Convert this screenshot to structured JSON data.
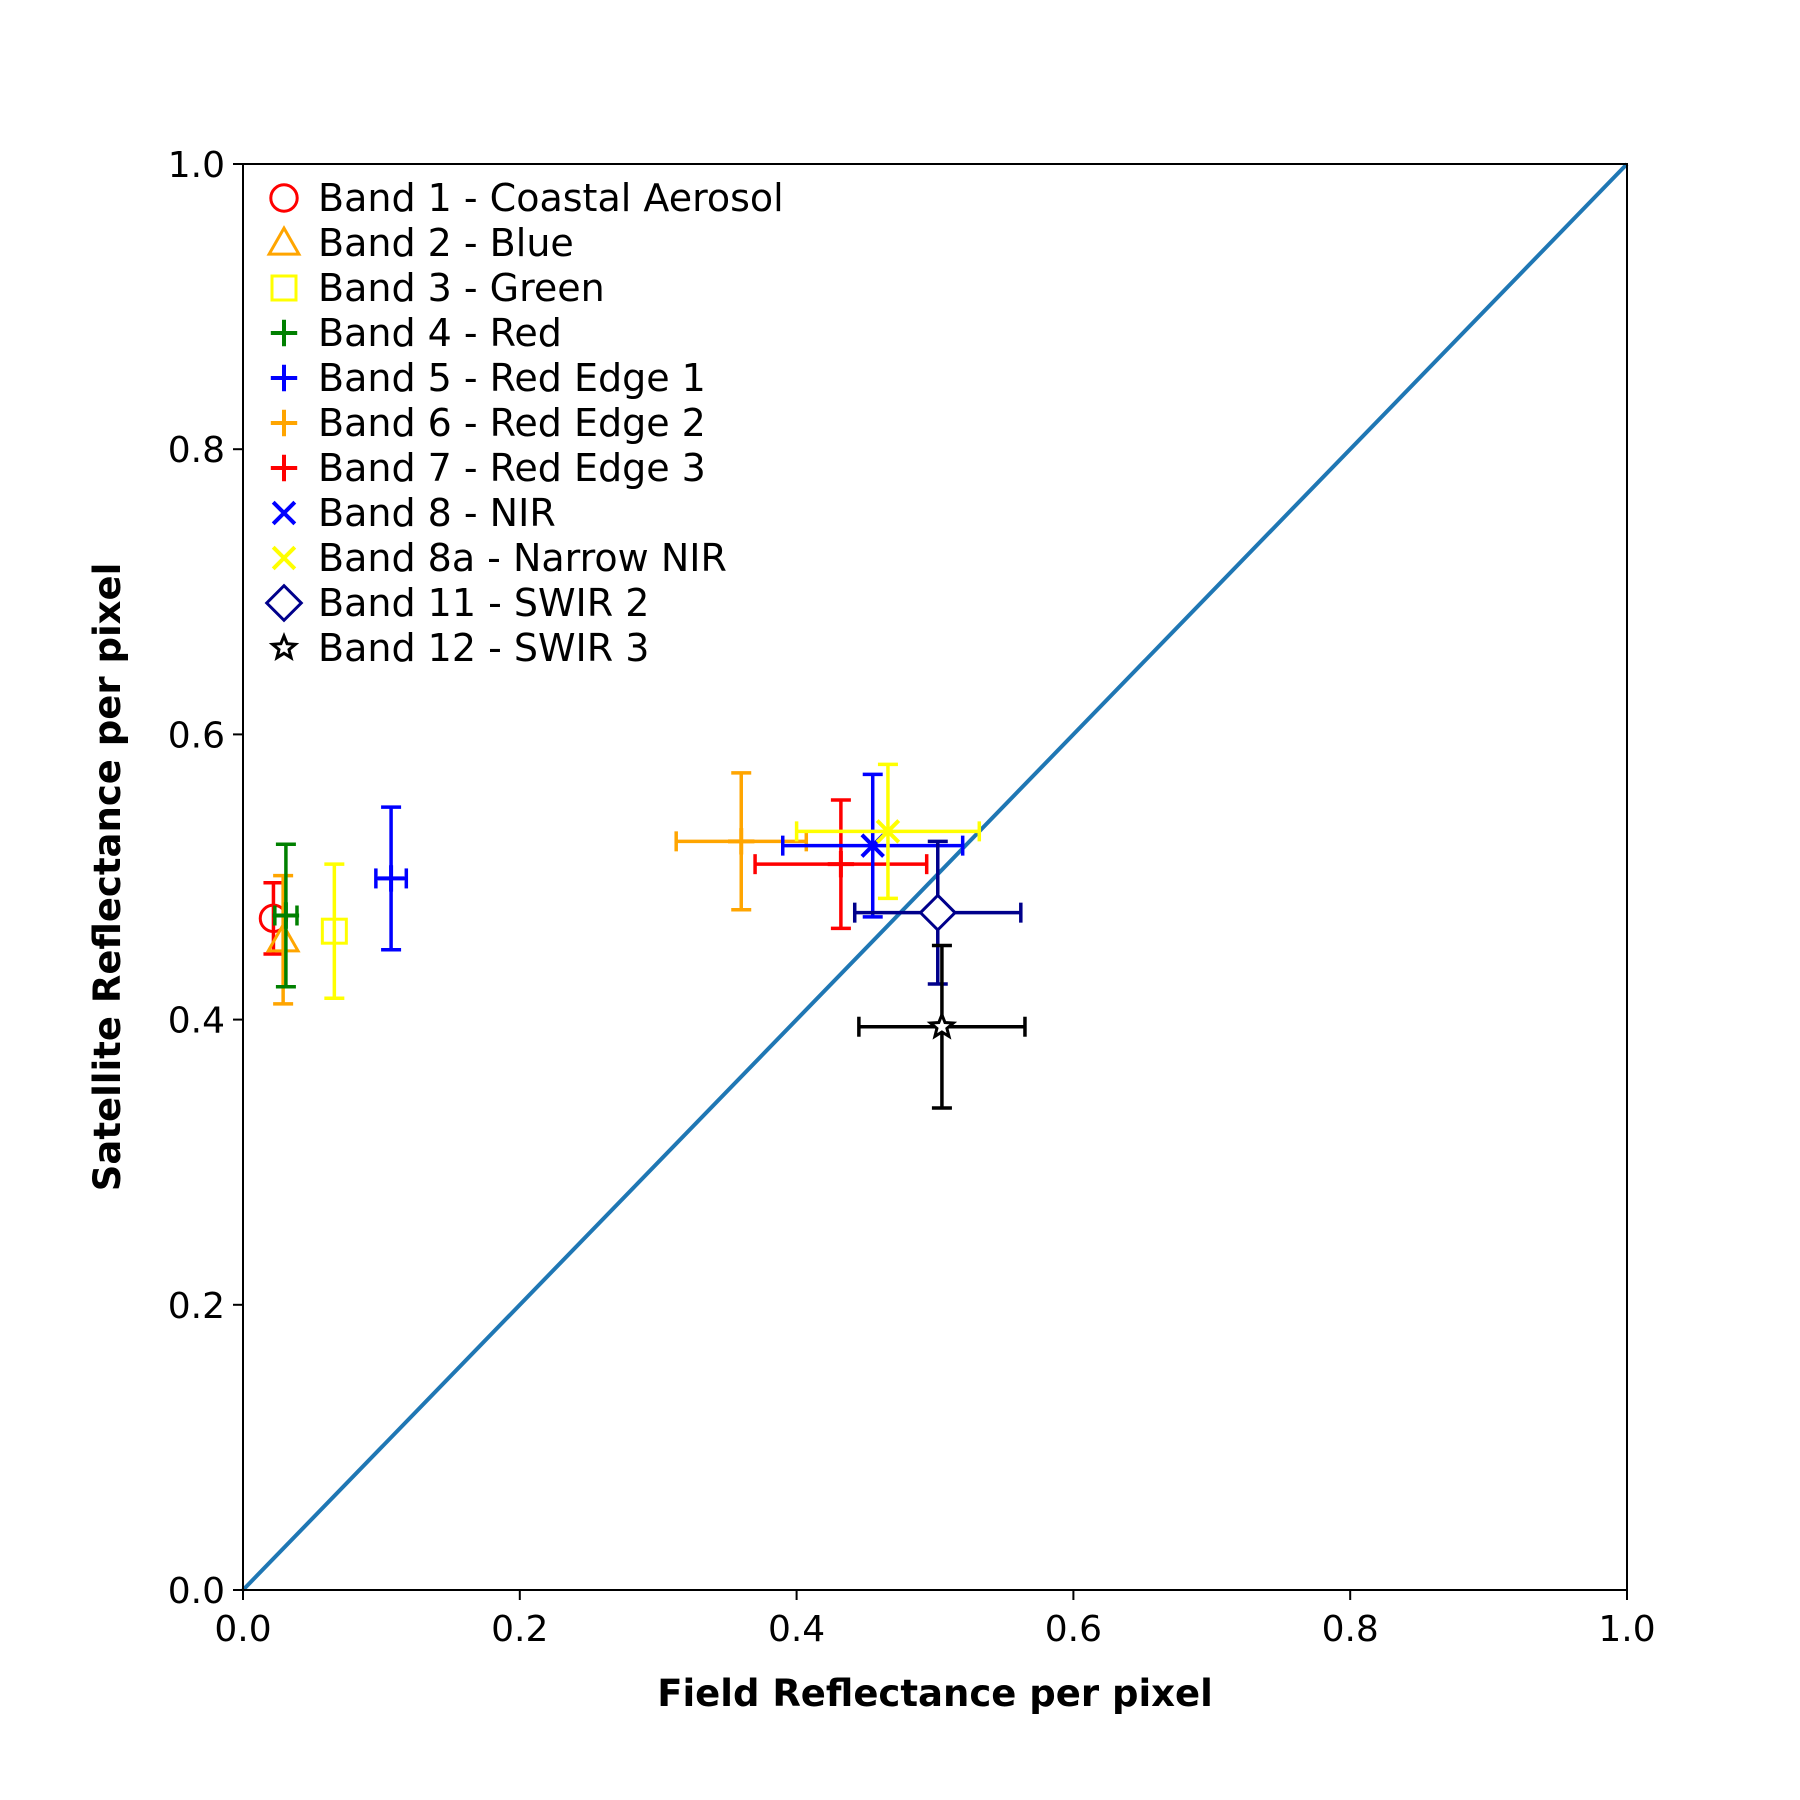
{
  "chart_data": {
    "type": "scatter",
    "title": "",
    "xlabel": "Field Reflectance per pixel",
    "ylabel": "Satellite Reflectance per pixel",
    "xlim": [
      0.0,
      1.0
    ],
    "ylim": [
      0.0,
      1.0
    ],
    "xticks": [
      "0.0",
      "0.2",
      "0.4",
      "0.6",
      "0.8",
      "1.0"
    ],
    "yticks": [
      "0.0",
      "0.2",
      "0.4",
      "0.6",
      "0.8",
      "1.0"
    ],
    "grid": false,
    "legend_position": "upper-left",
    "reference_line": {
      "x": [
        0.0,
        1.0
      ],
      "y": [
        0.0,
        1.0
      ],
      "color": "#1f77b4"
    },
    "series": [
      {
        "name": "Band 1 - Coastal Aerosol",
        "marker": "circle",
        "color": "#ff0000",
        "x": 0.022,
        "y": 0.471,
        "xerr": 0.0,
        "yerr": 0.025
      },
      {
        "name": "Band 2 - Blue",
        "marker": "triangle",
        "color": "#ffa500",
        "x": 0.029,
        "y": 0.456,
        "xerr": 0.0,
        "yerr": 0.045
      },
      {
        "name": "Band 3 - Green",
        "marker": "square",
        "color": "#ffff00",
        "x": 0.066,
        "y": 0.462,
        "xerr": 0.0,
        "yerr": 0.047
      },
      {
        "name": "Band 4 - Red",
        "marker": "plus",
        "color": "#008000",
        "x": 0.031,
        "y": 0.473,
        "xerr": 0.008,
        "yerr": 0.05
      },
      {
        "name": "Band 5 - Red Edge 1",
        "marker": "plus",
        "color": "#0000ff",
        "x": 0.107,
        "y": 0.499,
        "xerr": 0.011,
        "yerr": 0.05
      },
      {
        "name": "Band 6 - Red Edge 2",
        "marker": "plus",
        "color": "#ffa500",
        "x": 0.36,
        "y": 0.525,
        "xerr": 0.047,
        "yerr": 0.048
      },
      {
        "name": "Band 7 - Red Edge 3",
        "marker": "plus",
        "color": "#ff0000",
        "x": 0.432,
        "y": 0.509,
        "xerr": 0.062,
        "yerr": 0.045
      },
      {
        "name": "Band 8 - NIR",
        "marker": "x",
        "color": "#0000ff",
        "x": 0.455,
        "y": 0.522,
        "xerr": 0.065,
        "yerr": 0.05
      },
      {
        "name": "Band 8a - Narrow NIR",
        "marker": "x",
        "color": "#ffff00",
        "x": 0.466,
        "y": 0.532,
        "xerr": 0.066,
        "yerr": 0.047
      },
      {
        "name": "Band 11 - SWIR 2",
        "marker": "diamond",
        "color": "#00008b",
        "x": 0.502,
        "y": 0.475,
        "xerr": 0.06,
        "yerr": 0.05
      },
      {
        "name": "Band 12 - SWIR 3",
        "marker": "star",
        "color": "#000000",
        "x": 0.505,
        "y": 0.395,
        "xerr": 0.06,
        "yerr": 0.057
      }
    ]
  }
}
